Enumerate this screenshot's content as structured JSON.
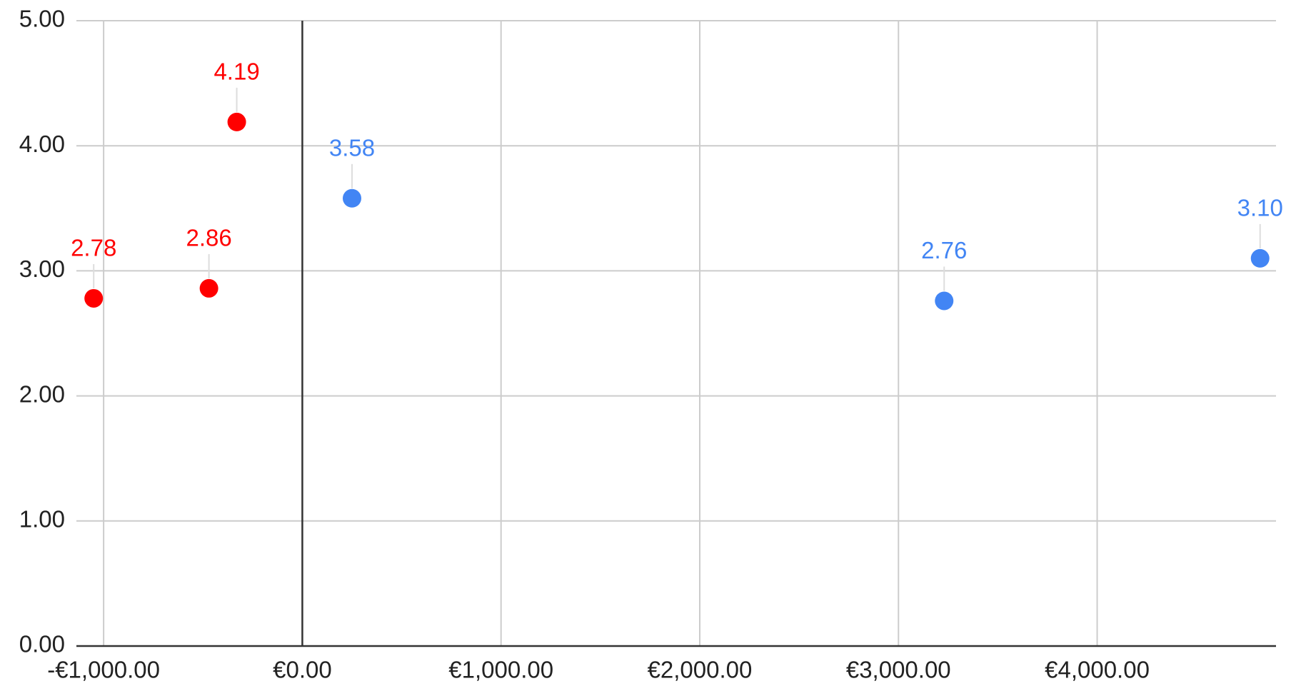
{
  "chart_data": {
    "type": "scatter",
    "series": [
      {
        "color": "#ff0000",
        "x": [
          -1050,
          -470,
          -330
        ],
        "values": [
          2.78,
          2.86,
          4.19
        ],
        "value_labels": [
          "2.78",
          "2.86",
          "4.19"
        ]
      },
      {
        "color": "#4285f4",
        "x": [
          250,
          3230,
          4820
        ],
        "values": [
          3.58,
          2.76,
          3.1
        ],
        "value_labels": [
          "3.58",
          "2.76",
          "3.10"
        ]
      }
    ],
    "xlim": [
      -1137,
      4900
    ],
    "xticks": [
      {
        "value": -1000,
        "label": "-€1,000.00"
      },
      {
        "value": 0,
        "label": "€0.00"
      },
      {
        "value": 1000,
        "label": "€1,000.00"
      },
      {
        "value": 2000,
        "label": "€2,000.00"
      },
      {
        "value": 3000,
        "label": "€3,000.00"
      },
      {
        "value": 4000,
        "label": "€4,000.00"
      }
    ],
    "ylim": [
      0,
      5
    ],
    "yticks": [
      {
        "value": 0,
        "label": "0.00"
      },
      {
        "value": 1,
        "label": "1.00"
      },
      {
        "value": 2,
        "label": "2.00"
      },
      {
        "value": 3,
        "label": "3.00"
      },
      {
        "value": 4,
        "label": "4.00"
      },
      {
        "value": 5,
        "label": "5.00"
      }
    ],
    "grid": true
  }
}
